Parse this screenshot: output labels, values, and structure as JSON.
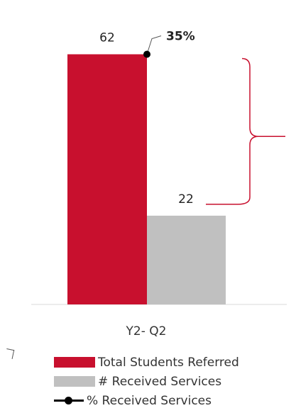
{
  "chart_data": {
    "type": "bar",
    "categories": [
      "Y2- Q2"
    ],
    "series": [
      {
        "name": "Total Students Referred",
        "values": [
          62
        ],
        "color": "#c8102e"
      },
      {
        "name": "# Received Services",
        "values": [
          22
        ],
        "color": "#c0c0c0"
      },
      {
        "name": "% Received Services",
        "type": "line",
        "values_percent": [
          35
        ],
        "color": "#000000"
      }
    ],
    "data_labels": {
      "total": "62",
      "received": "22",
      "percent": "35%"
    },
    "ylim": [
      0,
      70
    ],
    "legend_position": "bottom",
    "annotation": "bracket"
  }
}
